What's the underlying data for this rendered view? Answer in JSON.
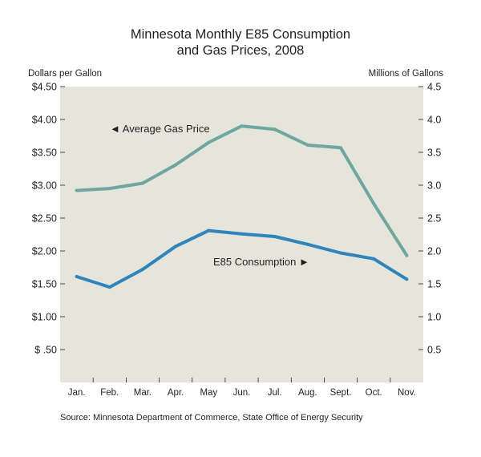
{
  "chart_data": {
    "type": "line",
    "title": [
      "Minnesota Monthly E85 Consumption",
      "and Gas Prices, 2008"
    ],
    "ylabel_left": "Dollars per Gallon",
    "ylabel_right": "Millions of Gallons",
    "categories": [
      "Jan.",
      "Feb.",
      "Mar.",
      "Apr.",
      "May",
      "Jun.",
      "Jul.",
      "Aug.",
      "Sept.",
      "Oct.",
      "Nov."
    ],
    "ylim_left": [
      0,
      4.5
    ],
    "ylim_right": [
      0,
      4.5
    ],
    "left_ticks": [
      {
        "value": 0.5,
        "label": "$  .50"
      },
      {
        "value": 1.0,
        "label": "$1.00"
      },
      {
        "value": 1.5,
        "label": "$1.50"
      },
      {
        "value": 2.0,
        "label": "$2.00"
      },
      {
        "value": 2.5,
        "label": "$2.50"
      },
      {
        "value": 3.0,
        "label": "$3.00"
      },
      {
        "value": 3.5,
        "label": "$3.50"
      },
      {
        "value": 4.0,
        "label": "$4.00"
      },
      {
        "value": 4.5,
        "label": "$4.50"
      }
    ],
    "right_ticks": [
      {
        "value": 0.5,
        "label": "0.5"
      },
      {
        "value": 1.0,
        "label": "1.0"
      },
      {
        "value": 1.5,
        "label": "1.5"
      },
      {
        "value": 2.0,
        "label": "2.0"
      },
      {
        "value": 2.5,
        "label": "2.5"
      },
      {
        "value": 3.0,
        "label": "3.0"
      },
      {
        "value": 3.5,
        "label": "3.5"
      },
      {
        "value": 4.0,
        "label": "4.0"
      },
      {
        "value": 4.5,
        "label": "4.5"
      }
    ],
    "series": [
      {
        "name": "Average Gas Price",
        "label": "◄ Average Gas Price",
        "axis": "left",
        "color": "#6fa79f",
        "values": [
          2.92,
          2.95,
          3.03,
          3.31,
          3.65,
          3.9,
          3.85,
          3.61,
          3.57,
          2.72,
          1.93
        ]
      },
      {
        "name": "E85 Consumption",
        "label": "E85 Consumption ►",
        "axis": "right",
        "color": "#2f85bb",
        "values": [
          1.61,
          1.45,
          1.72,
          2.07,
          2.31,
          2.26,
          2.22,
          2.1,
          1.97,
          1.88,
          1.57
        ]
      }
    ],
    "grid": false,
    "plot_background": "#e5e5dc",
    "source": "Source: Minnesota Department of Commerce, State Office of Energy Security"
  }
}
